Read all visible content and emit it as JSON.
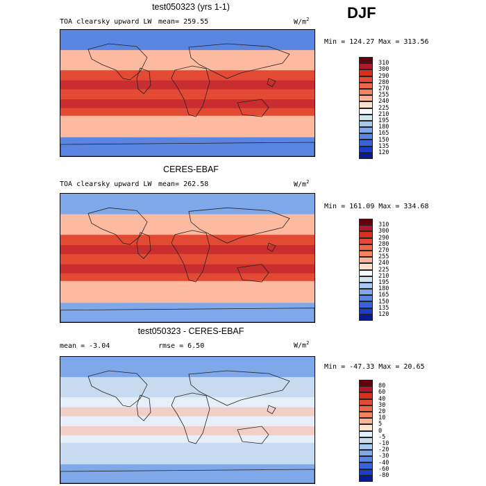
{
  "season": "DJF",
  "panels": [
    {
      "title": "test050323 (yrs 1-1)",
      "left_label": "TOA clearsky upward LW",
      "stat_label": "mean= 259.55",
      "units": "W/m",
      "units_sup": "2",
      "minmax": "Min = 124.27 Max = 313.56",
      "colorbar": {
        "labels": [
          "310",
          "300",
          "290",
          "280",
          "270",
          "255",
          "240",
          "225",
          "210",
          "195",
          "180",
          "165",
          "150",
          "135",
          "120"
        ],
        "colors": [
          "#67000d",
          "#b2182b",
          "#d6301f",
          "#e34a33",
          "#ef6548",
          "#f4845f",
          "#f9b49a",
          "#fde0d0",
          "#f4f7fb",
          "#d1e5f0",
          "#a6c8f0",
          "#7ea8ea",
          "#5a86e2",
          "#3a62d8",
          "#1c3cc8",
          "#0a1a8f"
        ]
      },
      "map_regions": {
        "tropics": "#e34a33",
        "midlat": "#fcbba1",
        "polar": "#5a86e2",
        "hot": "#b2182b"
      }
    },
    {
      "title": "CERES-EBAF",
      "left_label": "TOA clearsky upward LW",
      "stat_label": "mean= 262.58",
      "units": "W/m",
      "units_sup": "2",
      "minmax": "Min = 161.09 Max = 334.68",
      "colorbar": {
        "labels": [
          "310",
          "300",
          "290",
          "280",
          "270",
          "255",
          "240",
          "225",
          "210",
          "195",
          "180",
          "165",
          "150",
          "135",
          "120"
        ],
        "colors": [
          "#67000d",
          "#b2182b",
          "#d6301f",
          "#e34a33",
          "#ef6548",
          "#f4845f",
          "#f9b49a",
          "#fde0d0",
          "#f4f7fb",
          "#d1e5f0",
          "#a6c8f0",
          "#7ea8ea",
          "#5a86e2",
          "#3a62d8",
          "#1c3cc8",
          "#0a1a8f"
        ]
      },
      "map_regions": {
        "tropics": "#e34a33",
        "midlat": "#fcbba1",
        "polar": "#7ea8ea",
        "hot": "#b2182b"
      }
    },
    {
      "title": "test050323 - CERES-EBAF",
      "left_label": "mean =   -3.04",
      "stat_label": "rmse =    6.50",
      "units": "W/m",
      "units_sup": "2",
      "minmax": "Min = -47.33 Max =  20.65",
      "colorbar": {
        "labels": [
          "80",
          "60",
          "40",
          "30",
          "20",
          "10",
          "5",
          "0",
          "-5",
          "-10",
          "-20",
          "-30",
          "-40",
          "-60",
          "-80"
        ],
        "colors": [
          "#67000d",
          "#b2182b",
          "#d6301f",
          "#e34a33",
          "#ef6548",
          "#f4845f",
          "#f9b49a",
          "#fde0d0",
          "#e6eefa",
          "#c6dbef",
          "#a6c8f0",
          "#7ea8ea",
          "#5a86e2",
          "#3a62d8",
          "#1c3cc8",
          "#0a1a8f"
        ]
      },
      "map_regions": {
        "tropics": "#e6eefa",
        "midlat": "#c6dbef",
        "polar": "#7ea8ea",
        "hot": "#f9b49a"
      }
    }
  ]
}
